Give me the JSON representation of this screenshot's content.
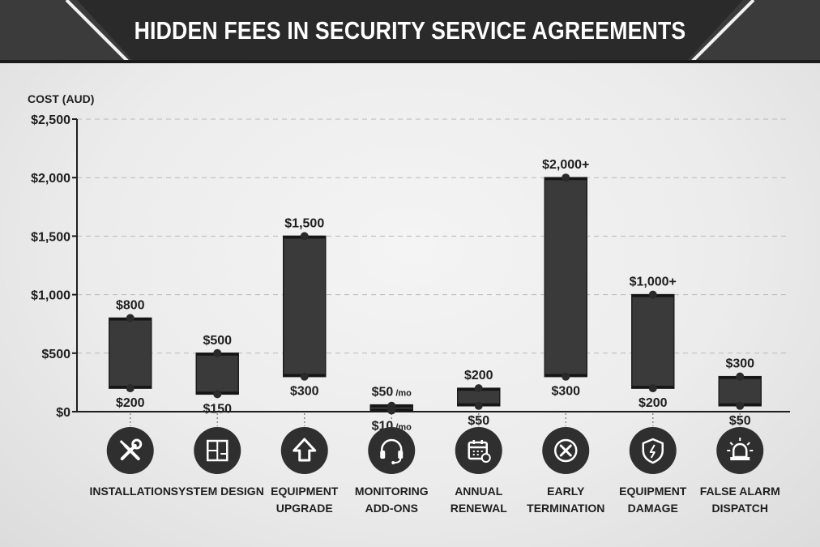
{
  "title": "HIDDEN FEES IN SECURITY SERVICE AGREEMENTS",
  "colors": {
    "header_bg": "#2c2c2c",
    "bar_fill": "#3a3a3a",
    "text": "#1e1e1e",
    "grid": "#b9b9b9",
    "background": "#ececec"
  },
  "chart_data": {
    "type": "bar",
    "subtype": "floating-range",
    "ylabel": "COST (AUD)",
    "ylim": [
      0,
      2500
    ],
    "yticks": [
      0,
      500,
      1000,
      1500,
      2000,
      2500
    ],
    "ytick_labels": [
      "$0",
      "$500",
      "$1,000",
      "$1,500",
      "$2,000",
      "$2,500"
    ],
    "grid": "horizontal dashed",
    "categories": [
      {
        "label_lines": [
          "INSTALLATION"
        ],
        "icon": "tools-icon",
        "low": 200,
        "high": 800,
        "low_label": "$200",
        "high_label": "$800"
      },
      {
        "label_lines": [
          "SYSTEM DESIGN"
        ],
        "icon": "floor-plan-icon",
        "low": 150,
        "high": 500,
        "low_label": "$150",
        "high_label": "$500"
      },
      {
        "label_lines": [
          "EQUIPMENT",
          "UPGRADE"
        ],
        "icon": "upgrade-arrow-icon",
        "low": 300,
        "high": 1500,
        "low_label": "$300",
        "high_label": "$1,500"
      },
      {
        "label_lines": [
          "MONITORING",
          "ADD-ONS"
        ],
        "icon": "headset-icon",
        "low": 10,
        "high": 50,
        "low_label": "$10",
        "high_label": "$50",
        "unit_suffix": "/mo"
      },
      {
        "label_lines": [
          "ANNUAL",
          "RENEWAL"
        ],
        "icon": "calendar-icon",
        "low": 50,
        "high": 200,
        "low_label": "$50",
        "high_label": "$200"
      },
      {
        "label_lines": [
          "EARLY",
          "TERMINATION"
        ],
        "icon": "cancel-icon",
        "low": 300,
        "high": 2000,
        "low_label": "$300",
        "high_label": "$2,000+"
      },
      {
        "label_lines": [
          "EQUIPMENT",
          "DAMAGE"
        ],
        "icon": "shield-icon",
        "low": 200,
        "high": 1000,
        "low_label": "$200",
        "high_label": "$1,000+"
      },
      {
        "label_lines": [
          "FALSE ALARM",
          "DISPATCH"
        ],
        "icon": "alarm-light-icon",
        "low": 50,
        "high": 300,
        "low_label": "$50",
        "high_label": "$300"
      }
    ]
  }
}
